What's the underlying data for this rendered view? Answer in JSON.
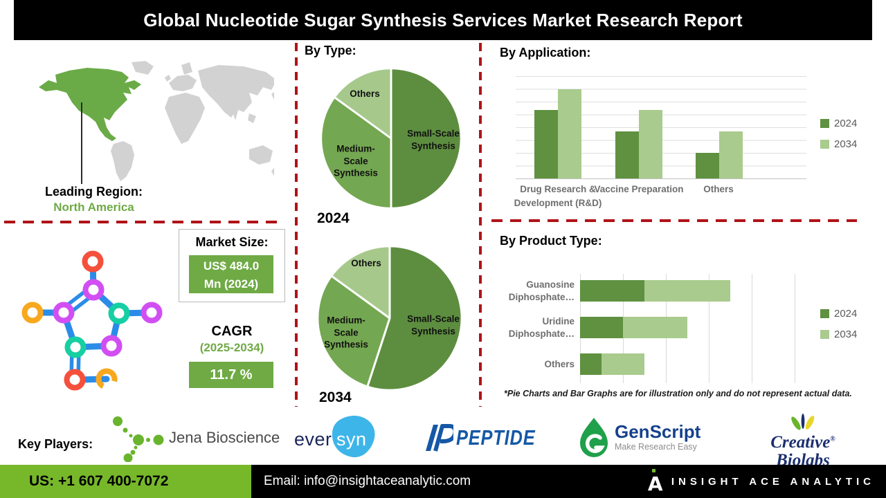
{
  "header": {
    "title": "Global Nucleotide Sugar Synthesis Services Market Research Report"
  },
  "leading_region": {
    "label": "Leading Region:",
    "value": "North America"
  },
  "market_size": {
    "label": "Market Size:",
    "value_line1": "US$ 484.0",
    "value_line2": "Mn (2024)"
  },
  "cagr": {
    "label": "CAGR",
    "period": "(2025-2034)",
    "value": "11.7 %"
  },
  "sections": {
    "by_type_title": "By Type:",
    "by_application_title": "By Application:",
    "by_product_type_title": "By Product Type:"
  },
  "disclaimer": "*Pie Charts and Bar Graphs are for illustration only and do not represent actual data.",
  "key_players": {
    "label": "Key Players:",
    "logos": [
      {
        "name": "Jena Bioscience",
        "text": "Jena Bioscience"
      },
      {
        "name": "eversyn",
        "text_left": "ever",
        "text_right": "syn"
      },
      {
        "name": "Peptide",
        "text": "PEPTIDE"
      },
      {
        "name": "GenScript",
        "text": "GenScript",
        "tagline": "Make Research Easy"
      },
      {
        "name": "Creative Biolabs",
        "line1": "Creative",
        "reg": "®",
        "line2": "Biolabs"
      }
    ]
  },
  "footer": {
    "phone": "US: +1 607 400-7072",
    "email": "Email: info@insightaceanalytic.com",
    "brand": "INSIGHT ACE ANALYTIC"
  },
  "colors": {
    "accent_green": "#6faa45",
    "footer_green": "#77b82a",
    "dash_red": "#b01217",
    "map_highlight": "#6aab47",
    "map_base": "#d2d2d2",
    "pie_dark": "#5d8e3f",
    "pie_mid": "#74a751",
    "pie_light": "#a6c98b",
    "bar_dark": "#5f9140",
    "bar_light": "#a9cb8d"
  },
  "chart_data": [
    {
      "type": "pie",
      "title": "By Type (2024)",
      "year": "2024",
      "labels": [
        "Small-Scale Synthesis",
        "Medium-Scale Synthesis",
        "Others"
      ],
      "values": [
        50,
        35,
        15
      ],
      "value_unit": "percent share (illustrative)",
      "colors": [
        "#5d8e3f",
        "#74a751",
        "#a6c98b"
      ],
      "legend_position": "none"
    },
    {
      "type": "pie",
      "title": "By Type (2034)",
      "year": "2034",
      "labels": [
        "Small-Scale Synthesis",
        "Medium-Scale Synthesis",
        "Others"
      ],
      "values": [
        55,
        30,
        15
      ],
      "value_unit": "percent share (illustrative)",
      "colors": [
        "#5d8e3f",
        "#74a751",
        "#a6c98b"
      ],
      "legend_position": "none"
    },
    {
      "type": "bar",
      "title": "By Application:",
      "categories": [
        "Drug Research & Development (R&D)",
        "Vaccine Preparation",
        "Others"
      ],
      "series": [
        {
          "name": "2024",
          "values": [
            6.7,
            4.6,
            2.5
          ]
        },
        {
          "name": "2034",
          "values": [
            8.7,
            6.7,
            4.6
          ]
        }
      ],
      "xlabel": "",
      "ylabel": "",
      "ylim": [
        0,
        10
      ],
      "grid": true,
      "legend_position": "right",
      "colors": [
        "#5f9140",
        "#a9cb8d"
      ],
      "note": "illustration only, not actual data"
    },
    {
      "type": "bar",
      "orientation": "horizontal",
      "stacked": true,
      "title": "By Product Type:",
      "categories": [
        "Guanosine Diphosphate…",
        "Uridine Diphosphate…",
        "Others"
      ],
      "series": [
        {
          "name": "2024",
          "values": [
            1.5,
            1.0,
            0.5
          ]
        },
        {
          "name": "2034",
          "values": [
            2.0,
            1.5,
            1.0
          ]
        }
      ],
      "xlabel": "",
      "ylabel": "",
      "xlim": [
        0,
        5.5
      ],
      "grid": true,
      "legend_position": "right",
      "colors": [
        "#5f9140",
        "#a9cb8d"
      ],
      "note": "illustration only, not actual data"
    }
  ]
}
